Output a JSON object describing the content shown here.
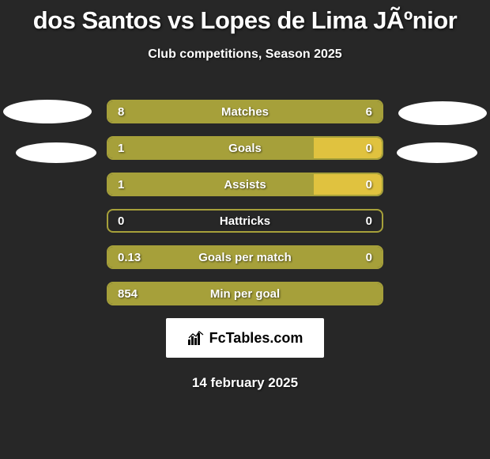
{
  "title": "dos Santos vs Lopes de Lima JÃºnior",
  "subtitle": "Club competitions, Season 2025",
  "date": "14 february 2025",
  "logo_text": "FcTables.com",
  "colors": {
    "background": "#272727",
    "bar_primary": "#a6a03a",
    "bar_secondary": "#e0c23f",
    "border": "#a6a03a",
    "text": "#ffffff",
    "ellipse": "#ffffff",
    "logo_bg": "#ffffff",
    "logo_text": "#000000"
  },
  "stats": [
    {
      "label": "Matches",
      "left_value": "8",
      "right_value": "6",
      "left_width_pct": 100,
      "right_width_pct": 0,
      "left_color": "#a6a03a",
      "right_color": "#e0c23f"
    },
    {
      "label": "Goals",
      "left_value": "1",
      "right_value": "0",
      "left_width_pct": 75,
      "right_width_pct": 25,
      "left_color": "#a6a03a",
      "right_color": "#e0c23f"
    },
    {
      "label": "Assists",
      "left_value": "1",
      "right_value": "0",
      "left_width_pct": 75,
      "right_width_pct": 25,
      "left_color": "#a6a03a",
      "right_color": "#e0c23f"
    },
    {
      "label": "Hattricks",
      "left_value": "0",
      "right_value": "0",
      "left_width_pct": 0,
      "right_width_pct": 0,
      "left_color": "#a6a03a",
      "right_color": "#e0c23f"
    },
    {
      "label": "Goals per match",
      "left_value": "0.13",
      "right_value": "0",
      "left_width_pct": 100,
      "right_width_pct": 0,
      "left_color": "#a6a03a",
      "right_color": "#e0c23f"
    },
    {
      "label": "Min per goal",
      "left_value": "854",
      "right_value": "",
      "left_width_pct": 100,
      "right_width_pct": 0,
      "left_color": "#a6a03a",
      "right_color": "#e0c23f"
    }
  ]
}
